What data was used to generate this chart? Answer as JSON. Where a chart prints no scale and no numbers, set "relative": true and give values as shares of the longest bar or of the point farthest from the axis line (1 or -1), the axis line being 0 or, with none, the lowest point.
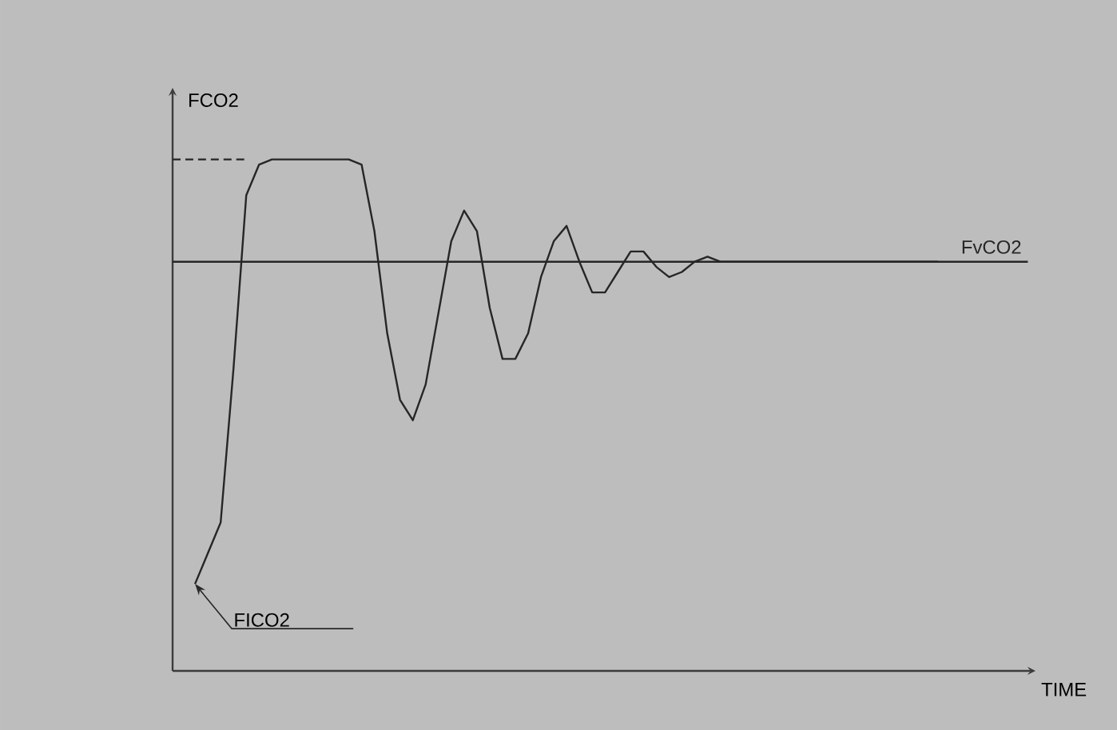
{
  "chart_data": {
    "type": "line",
    "relative": true,
    "ylabel": "FCO2",
    "xlabel": "TIME",
    "marker": "none",
    "categories": [
      null,
      null,
      null,
      null,
      null,
      null,
      null,
      null,
      null,
      null,
      null,
      null,
      null,
      null,
      null,
      null,
      null,
      null,
      null,
      null,
      null,
      null,
      null,
      null,
      null,
      null,
      null,
      null,
      null,
      null,
      null,
      null,
      null,
      null,
      null,
      null,
      null,
      null,
      null,
      null,
      null,
      null,
      null,
      null,
      null,
      null,
      null,
      null,
      null,
      null,
      null,
      null,
      null,
      null,
      null,
      null,
      null,
      null,
      null,
      null,
      null,
      null,
      null,
      null,
      null,
      null
    ],
    "series": [
      {
        "color": "#262626",
        "values": [
          0.17,
          0.23,
          0.29,
          0.59,
          0.93,
          0.99,
          1,
          1,
          1,
          1,
          1,
          1,
          1,
          0.99,
          0.86,
          0.66,
          0.53,
          0.49,
          0.56,
          0.7,
          0.84,
          0.9,
          0.86,
          0.71,
          0.61,
          0.61,
          0.66,
          0.77,
          0.84,
          0.87,
          0.8,
          0.74,
          0.74,
          0.78,
          0.82,
          0.82,
          0.79,
          0.77,
          0.78,
          0.8,
          0.81,
          0.8,
          0.8,
          0.8,
          0.8,
          0.8,
          0.8,
          0.8,
          0.8,
          0.8,
          0.8,
          0.8,
          0.8,
          0.8,
          0.8,
          0.8,
          0.8,
          0.8,
          0.8,
          null,
          null,
          null,
          null,
          null,
          null,
          null
        ]
      }
    ],
    "ref_lines": [
      {
        "axis": "y",
        "value": 0.8,
        "label": "FvCO2",
        "color": "#262626",
        "line_style": "solid"
      },
      {
        "axis": "y",
        "value": 1,
        "color": "#262626",
        "line_style": "dashed"
      }
    ],
    "annotations": [
      "FICO2"
    ]
  }
}
